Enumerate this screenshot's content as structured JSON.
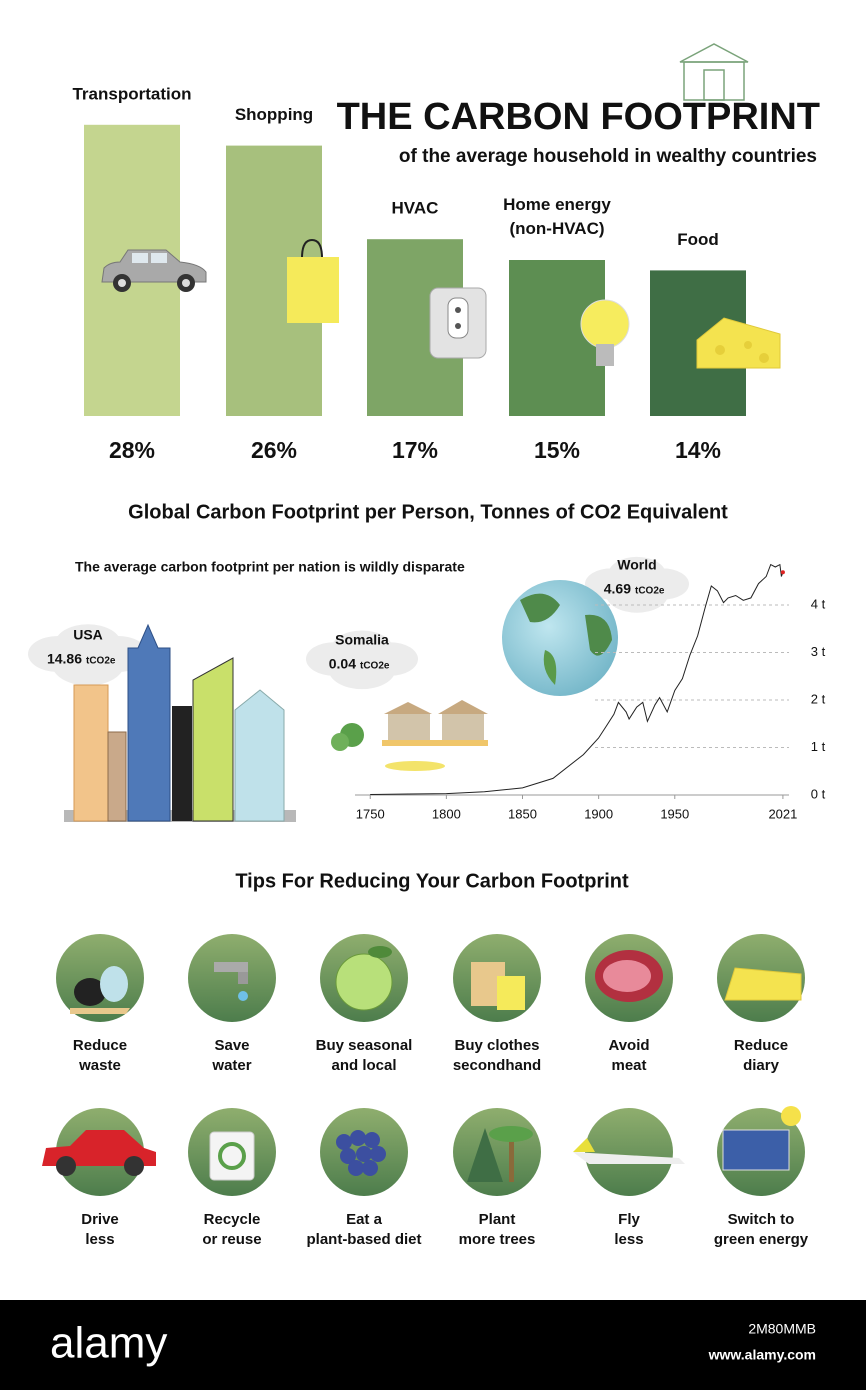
{
  "chart_data": [
    {
      "type": "bar",
      "title": "THE CARBON FOOTPRINT",
      "subtitle": "of the average household in wealthy countries",
      "categories": [
        "Transportation",
        "Shopping",
        "HVAC",
        "Home energy\n(non-HVAC)",
        "Food"
      ],
      "values": [
        28,
        26,
        17,
        15,
        14
      ],
      "value_labels": [
        "28%",
        "26%",
        "17%",
        "15%",
        "14%"
      ],
      "colors": [
        "#c4d58f",
        "#a7c07d",
        "#7ea566",
        "#5d8e52",
        "#3f6e45"
      ]
    },
    {
      "type": "line",
      "title": "Global Carbon Footprint per Person, Tonnes of CO2 Equivalent",
      "subtitle": "The average carbon footprint per nation is wildly disparate",
      "x": [
        1750,
        1775,
        1800,
        1825,
        1850,
        1870,
        1890,
        1900,
        1905,
        1910,
        1913,
        1918,
        1920,
        1925,
        1929,
        1932,
        1937,
        1940,
        1945,
        1950,
        1955,
        1960,
        1965,
        1970,
        1974,
        1978,
        1982,
        1985,
        1990,
        1995,
        2000,
        2005,
        2010,
        2013,
        2016,
        2019,
        2020,
        2021
      ],
      "values": [
        0.01,
        0.02,
        0.03,
        0.07,
        0.15,
        0.35,
        0.85,
        1.2,
        1.45,
        1.7,
        1.95,
        1.75,
        1.6,
        1.85,
        1.95,
        1.55,
        1.9,
        2.05,
        1.75,
        2.2,
        2.45,
        2.95,
        3.35,
        3.95,
        4.4,
        4.3,
        4.05,
        4.15,
        4.2,
        4.1,
        4.15,
        4.45,
        4.6,
        4.85,
        4.8,
        4.85,
        4.6,
        4.69
      ],
      "color": "#222222",
      "xlim": [
        1740,
        2025
      ],
      "xticks": [
        1750,
        1800,
        1850,
        1900,
        1950,
        2021
      ],
      "ylim": [
        0,
        5
      ],
      "yticks": [
        {
          "value": 0,
          "label": "0 t"
        },
        {
          "value": 1,
          "label": "1 t"
        },
        {
          "value": 2,
          "label": "2 t"
        },
        {
          "value": 3,
          "label": "3 t"
        },
        {
          "value": 4,
          "label": "4 t"
        }
      ],
      "grid": true,
      "annotations": [
        {
          "label": "USA",
          "value": 14.86,
          "unit": "tCO2e"
        },
        {
          "label": "Somalia",
          "value": 0.04,
          "unit": "tCO2e"
        },
        {
          "label": "World",
          "value": 4.69,
          "unit": "tCO2e"
        }
      ]
    }
  ],
  "tips": {
    "title": "Tips For Reducing Your Carbon Footprint",
    "items": [
      "Reduce\nwaste",
      "Save\nwater",
      "Buy seasonal\nand local",
      "Buy clothes\nsecondhand",
      "Avoid\nmeat",
      "Reduce\ndiary",
      "Drive\nless",
      "Recycle\nor reuse",
      "Eat a\nplant-based diet",
      "Plant\nmore trees",
      "Fly\nless",
      "Switch to\ngreen energy"
    ]
  },
  "watermark": {
    "brand": "alamy",
    "id": "2M80MMB",
    "url": "www.alamy.com"
  }
}
